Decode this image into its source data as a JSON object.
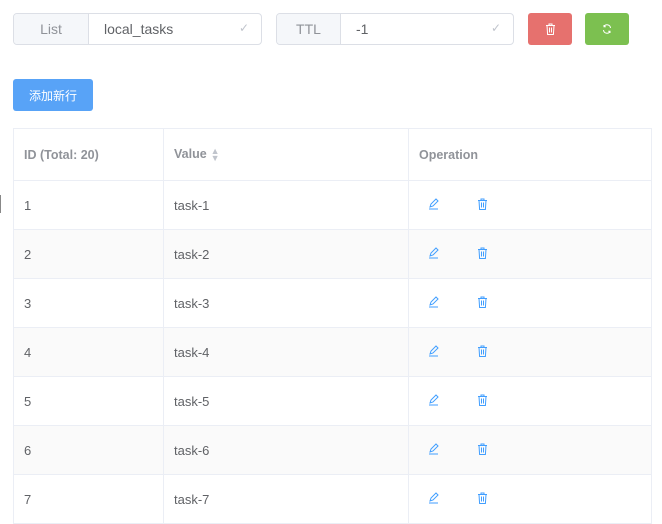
{
  "toolbar": {
    "list_label": "List",
    "list_value": "local_tasks",
    "ttl_label": "TTL",
    "ttl_value": "-1",
    "add_row_label": "添加新行"
  },
  "colors": {
    "danger": "#e6716e",
    "success": "#7cc050",
    "primary": "#58a3f7"
  },
  "table": {
    "headers": {
      "id": "ID (Total: 20)",
      "value": "Value",
      "operation": "Operation"
    },
    "rows": [
      {
        "id": "1",
        "value": "task-1"
      },
      {
        "id": "2",
        "value": "task-2"
      },
      {
        "id": "3",
        "value": "task-3"
      },
      {
        "id": "4",
        "value": "task-4"
      },
      {
        "id": "5",
        "value": "task-5"
      },
      {
        "id": "6",
        "value": "task-6"
      },
      {
        "id": "7",
        "value": "task-7"
      }
    ]
  }
}
